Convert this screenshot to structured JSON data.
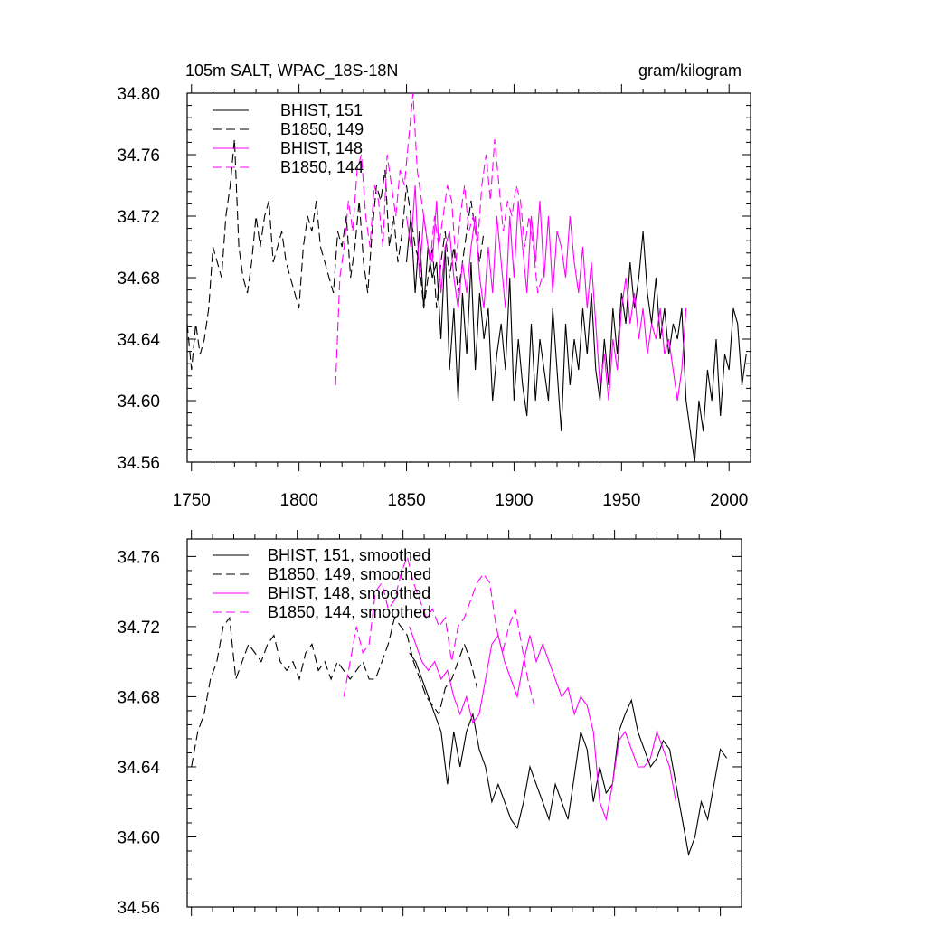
{
  "figure": {
    "title": "105m SALT, WPAC_18S-18N",
    "units": "gram/kilogram"
  },
  "chart_data": [
    {
      "type": "line",
      "xlim": [
        1748,
        2010
      ],
      "ylim": [
        34.56,
        34.8
      ],
      "xticks": [
        1750,
        1800,
        1850,
        1900,
        1950,
        2000
      ],
      "xtick_labels": [
        "1750",
        "1800",
        "1850",
        "1900",
        "1950",
        "2000"
      ],
      "yticks": [
        34.56,
        34.6,
        34.64,
        34.68,
        34.72,
        34.76,
        34.8
      ],
      "ytick_labels": [
        "34.56",
        "34.60",
        "34.64",
        "34.68",
        "34.72",
        "34.76",
        "34.80"
      ],
      "grid": false,
      "legend_position": "top-left",
      "series": [
        {
          "name": "BHIST, 151",
          "color": "#000000",
          "dash": "solid",
          "x": [
            1850,
            1852,
            1854,
            1856,
            1858,
            1860,
            1862,
            1864,
            1866,
            1868,
            1870,
            1872,
            1874,
            1876,
            1878,
            1880,
            1882,
            1884,
            1886,
            1888,
            1890,
            1892,
            1894,
            1896,
            1898,
            1900,
            1902,
            1904,
            1906,
            1908,
            1910,
            1912,
            1914,
            1916,
            1918,
            1920,
            1922,
            1924,
            1926,
            1928,
            1930,
            1932,
            1934,
            1936,
            1938,
            1940,
            1942,
            1944,
            1946,
            1948,
            1950,
            1952,
            1954,
            1956,
            1958,
            1960,
            1962,
            1964,
            1966,
            1968,
            1970,
            1972,
            1974,
            1976,
            1978,
            1980,
            1982,
            1984,
            1986,
            1988,
            1990,
            1992,
            1994,
            1996,
            1998,
            2000,
            2002,
            2004,
            2006,
            2008
          ],
          "values": [
            34.69,
            34.72,
            34.67,
            34.71,
            34.66,
            34.7,
            34.68,
            34.69,
            34.64,
            34.7,
            34.62,
            34.66,
            34.6,
            34.67,
            34.63,
            34.69,
            34.62,
            34.67,
            34.64,
            34.66,
            34.6,
            34.63,
            34.65,
            34.62,
            34.68,
            34.6,
            34.64,
            34.61,
            34.59,
            34.65,
            34.6,
            34.64,
            34.62,
            34.6,
            34.66,
            34.62,
            34.58,
            34.65,
            34.61,
            34.64,
            34.62,
            34.66,
            34.63,
            34.67,
            34.62,
            34.6,
            34.64,
            34.61,
            34.66,
            34.63,
            34.67,
            34.65,
            34.69,
            34.66,
            34.68,
            34.71,
            34.67,
            34.65,
            34.68,
            34.64,
            34.66,
            34.63,
            34.65,
            34.64,
            34.66,
            34.6,
            34.58,
            34.56,
            34.6,
            34.58,
            34.62,
            34.6,
            34.64,
            34.59,
            34.63,
            34.62,
            34.66,
            34.65,
            34.61,
            34.63
          ]
        },
        {
          "name": "B1850, 149",
          "color": "#000000",
          "dash": "dashed",
          "x": [
            1748,
            1750,
            1752,
            1754,
            1756,
            1758,
            1760,
            1762,
            1764,
            1766,
            1768,
            1770,
            1772,
            1774,
            1776,
            1778,
            1780,
            1782,
            1784,
            1786,
            1788,
            1790,
            1792,
            1794,
            1796,
            1798,
            1800,
            1802,
            1804,
            1806,
            1808,
            1810,
            1812,
            1814,
            1816,
            1818,
            1820,
            1822,
            1824,
            1826,
            1828,
            1830,
            1832,
            1834,
            1836,
            1838,
            1840,
            1842,
            1844,
            1846,
            1848,
            1850,
            1852,
            1854,
            1856,
            1858,
            1860,
            1862,
            1864,
            1866,
            1868,
            1870,
            1872,
            1874,
            1876,
            1878,
            1880,
            1882,
            1884,
            1886
          ],
          "values": [
            34.65,
            34.62,
            34.65,
            34.63,
            34.64,
            34.66,
            34.7,
            34.69,
            34.68,
            34.72,
            34.74,
            34.77,
            34.7,
            34.68,
            34.67,
            34.69,
            34.72,
            34.7,
            34.72,
            34.73,
            34.69,
            34.7,
            34.71,
            34.69,
            34.68,
            34.67,
            34.66,
            34.7,
            34.72,
            34.71,
            34.73,
            34.7,
            34.69,
            34.68,
            34.67,
            34.71,
            34.7,
            34.72,
            34.68,
            34.7,
            34.73,
            34.69,
            34.67,
            34.71,
            34.74,
            34.73,
            34.75,
            34.7,
            34.72,
            34.69,
            34.71,
            34.74,
            34.72,
            34.7,
            34.69,
            34.66,
            34.68,
            34.7,
            34.66,
            34.69,
            34.71,
            34.68,
            34.7,
            34.67,
            34.69,
            34.71,
            34.73,
            34.71,
            34.69,
            34.71
          ]
        },
        {
          "name": "BHIST, 148",
          "color": "#ff00ff",
          "dash": "solid",
          "x": [
            1850,
            1852,
            1854,
            1856,
            1858,
            1860,
            1862,
            1864,
            1866,
            1868,
            1870,
            1872,
            1874,
            1876,
            1878,
            1880,
            1882,
            1884,
            1886,
            1888,
            1890,
            1892,
            1894,
            1896,
            1898,
            1900,
            1902,
            1904,
            1906,
            1908,
            1910,
            1912,
            1914,
            1916,
            1918,
            1920,
            1922,
            1924,
            1926,
            1928,
            1930,
            1932,
            1934,
            1936,
            1938,
            1940,
            1942,
            1944,
            1946,
            1948,
            1950,
            1952,
            1954,
            1956,
            1958,
            1960,
            1962,
            1964,
            1966,
            1968,
            1970,
            1972,
            1974,
            1976,
            1978,
            1980
          ],
          "values": [
            34.72,
            34.7,
            34.74,
            34.68,
            34.72,
            34.7,
            34.69,
            34.73,
            34.67,
            34.7,
            34.71,
            34.68,
            34.66,
            34.69,
            34.67,
            34.7,
            34.72,
            34.68,
            34.66,
            34.7,
            34.67,
            34.72,
            34.69,
            34.66,
            34.72,
            34.68,
            34.73,
            34.7,
            34.67,
            34.72,
            34.69,
            34.73,
            34.68,
            34.72,
            34.67,
            34.71,
            34.7,
            34.68,
            34.72,
            34.69,
            34.67,
            34.7,
            34.66,
            34.69,
            34.65,
            34.61,
            34.63,
            34.6,
            34.64,
            34.62,
            34.66,
            34.68,
            34.65,
            34.67,
            34.64,
            34.66,
            34.63,
            34.65,
            34.64,
            34.66,
            34.63,
            34.64,
            34.62,
            34.6,
            34.62,
            34.66
          ]
        },
        {
          "name": "B1850, 144",
          "color": "#ff00ff",
          "dash": "dashed",
          "x": [
            1817,
            1819,
            1821,
            1823,
            1825,
            1827,
            1829,
            1831,
            1833,
            1835,
            1837,
            1839,
            1841,
            1843,
            1845,
            1847,
            1849,
            1851,
            1853,
            1855,
            1857,
            1859,
            1861,
            1863,
            1865,
            1867,
            1869,
            1871,
            1873,
            1875,
            1877,
            1879,
            1881,
            1883,
            1885,
            1887,
            1889,
            1891,
            1893,
            1895,
            1897,
            1899,
            1901,
            1903,
            1905,
            1907,
            1909,
            1911,
            1913
          ],
          "values": [
            34.61,
            34.68,
            34.7,
            34.73,
            34.71,
            34.75,
            34.76,
            34.72,
            34.7,
            34.74,
            34.73,
            34.7,
            34.76,
            34.74,
            34.72,
            34.75,
            34.74,
            34.77,
            34.8,
            34.75,
            34.73,
            34.71,
            34.69,
            34.72,
            34.7,
            34.72,
            34.74,
            34.73,
            34.69,
            34.72,
            34.74,
            34.71,
            34.72,
            34.7,
            34.74,
            34.76,
            34.73,
            34.77,
            34.74,
            34.71,
            34.73,
            34.72,
            34.74,
            34.73,
            34.7,
            34.72,
            34.7,
            34.67,
            34.68
          ]
        }
      ]
    },
    {
      "type": "line",
      "xlim": [
        1748,
        2010
      ],
      "ylim": [
        34.56,
        34.77
      ],
      "xticks": [
        1750,
        1800,
        1850,
        1900,
        1950,
        2000
      ],
      "yticks": [
        34.56,
        34.6,
        34.64,
        34.68,
        34.72,
        34.76
      ],
      "ytick_labels": [
        "34.56",
        "34.60",
        "34.64",
        "34.68",
        "34.72",
        "34.76"
      ],
      "grid": false,
      "legend_position": "top-left",
      "series": [
        {
          "name": "BHIST, 151, smoothed",
          "color": "#000000",
          "dash": "solid",
          "x": [
            1853,
            1856,
            1859,
            1862,
            1865,
            1868,
            1871,
            1874,
            1877,
            1880,
            1883,
            1886,
            1889,
            1892,
            1895,
            1898,
            1901,
            1904,
            1907,
            1910,
            1913,
            1916,
            1919,
            1922,
            1925,
            1928,
            1931,
            1934,
            1937,
            1940,
            1943,
            1946,
            1949,
            1952,
            1955,
            1958,
            1961,
            1964,
            1967,
            1970,
            1973,
            1976,
            1979,
            1982,
            1985,
            1988,
            1991,
            1994,
            1997,
            2000,
            2003
          ],
          "values": [
            34.705,
            34.7,
            34.69,
            34.68,
            34.67,
            34.66,
            34.63,
            34.66,
            34.64,
            34.66,
            34.67,
            34.65,
            34.64,
            34.62,
            34.63,
            34.62,
            34.61,
            34.605,
            34.62,
            34.64,
            34.63,
            34.62,
            34.61,
            34.63,
            34.62,
            34.61,
            34.635,
            34.66,
            34.65,
            34.62,
            34.64,
            34.625,
            34.63,
            34.66,
            34.67,
            34.678,
            34.66,
            34.65,
            34.64,
            34.645,
            34.655,
            34.65,
            34.63,
            34.61,
            34.59,
            34.6,
            34.62,
            34.61,
            34.63,
            34.65,
            34.645
          ]
        },
        {
          "name": "B1850, 149, smoothed",
          "color": "#000000",
          "dash": "dashed",
          "x": [
            1750,
            1753,
            1756,
            1759,
            1762,
            1765,
            1768,
            1771,
            1774,
            1777,
            1780,
            1783,
            1786,
            1789,
            1792,
            1795,
            1798,
            1801,
            1804,
            1807,
            1810,
            1813,
            1816,
            1819,
            1822,
            1825,
            1828,
            1831,
            1834,
            1837,
            1840,
            1843,
            1846,
            1849,
            1852,
            1855,
            1858,
            1861,
            1864,
            1867,
            1870,
            1873,
            1876,
            1879,
            1882,
            1885
          ],
          "values": [
            34.64,
            34.66,
            34.67,
            34.69,
            34.7,
            34.72,
            34.725,
            34.69,
            34.7,
            34.71,
            34.705,
            34.7,
            34.71,
            34.715,
            34.7,
            34.695,
            34.7,
            34.69,
            34.705,
            34.71,
            34.695,
            34.7,
            34.69,
            34.7,
            34.695,
            34.69,
            34.695,
            34.7,
            34.69,
            34.69,
            34.7,
            34.71,
            34.725,
            34.72,
            34.715,
            34.7,
            34.69,
            34.68,
            34.675,
            34.67,
            34.685,
            34.69,
            34.7,
            34.71,
            34.7,
            34.685
          ]
        },
        {
          "name": "BHIST, 148, smoothed",
          "color": "#ff00ff",
          "dash": "solid",
          "x": [
            1853,
            1856,
            1859,
            1862,
            1865,
            1868,
            1871,
            1874,
            1877,
            1880,
            1883,
            1886,
            1889,
            1892,
            1895,
            1898,
            1901,
            1904,
            1907,
            1910,
            1913,
            1916,
            1919,
            1922,
            1925,
            1928,
            1931,
            1934,
            1937,
            1940,
            1943,
            1946,
            1949,
            1952,
            1955,
            1958,
            1961,
            1964,
            1967,
            1970,
            1973,
            1976,
            1979
          ],
          "values": [
            34.72,
            34.71,
            34.7,
            34.695,
            34.7,
            34.69,
            34.695,
            34.68,
            34.67,
            34.68,
            34.665,
            34.67,
            34.69,
            34.71,
            34.715,
            34.7,
            34.69,
            34.68,
            34.7,
            34.715,
            34.7,
            34.71,
            34.7,
            34.69,
            34.68,
            34.685,
            34.67,
            34.68,
            34.675,
            34.66,
            34.62,
            34.61,
            34.63,
            34.655,
            34.66,
            34.65,
            34.64,
            34.64,
            34.645,
            34.66,
            34.65,
            34.64,
            34.62
          ]
        },
        {
          "name": "B1850, 144, smoothed",
          "color": "#ff00ff",
          "dash": "dashed",
          "x": [
            1822,
            1825,
            1828,
            1831,
            1834,
            1837,
            1840,
            1843,
            1846,
            1849,
            1852,
            1855,
            1858,
            1861,
            1864,
            1867,
            1870,
            1873,
            1876,
            1879,
            1882,
            1885,
            1888,
            1891,
            1894,
            1897,
            1900,
            1903,
            1906,
            1909,
            1912
          ],
          "values": [
            34.68,
            34.7,
            34.72,
            34.705,
            34.71,
            34.74,
            34.745,
            34.73,
            34.735,
            34.75,
            34.76,
            34.745,
            34.735,
            34.725,
            34.73,
            34.72,
            34.725,
            34.7,
            34.72,
            34.725,
            34.735,
            34.745,
            34.75,
            34.745,
            34.72,
            34.705,
            34.72,
            34.73,
            34.71,
            34.69,
            34.675
          ]
        }
      ]
    }
  ]
}
